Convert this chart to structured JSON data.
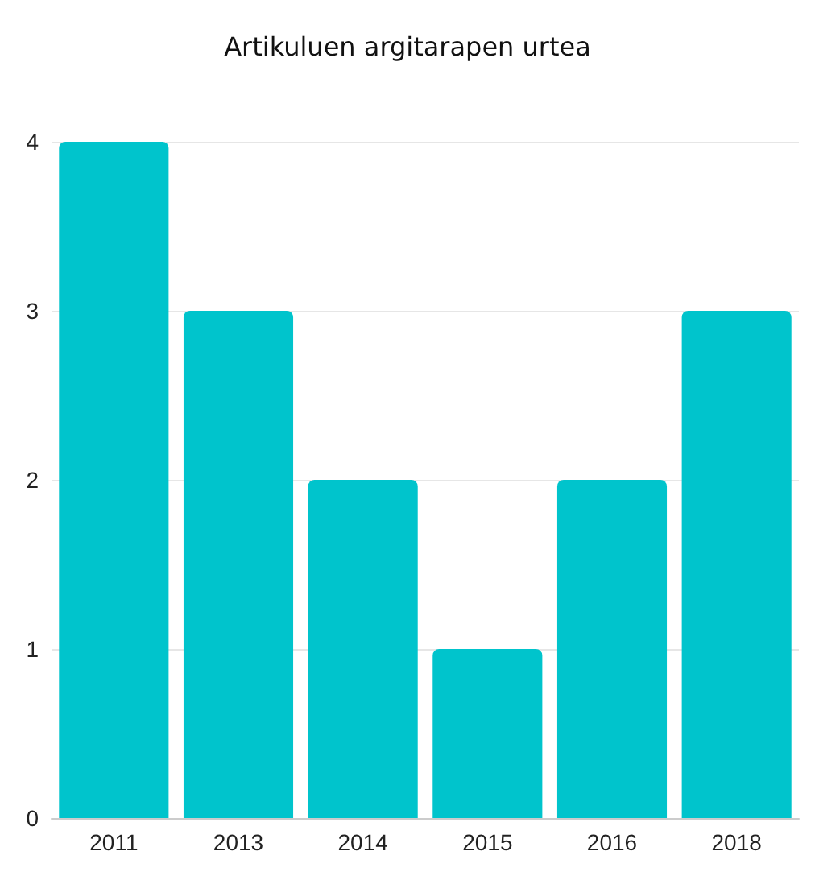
{
  "chart_data": {
    "type": "bar",
    "title": "Artikuluen argitarapen urtea",
    "categories": [
      "2011",
      "2013",
      "2014",
      "2015",
      "2016",
      "2018"
    ],
    "values": [
      4,
      3,
      2,
      1,
      2,
      3
    ],
    "color": "#00c4cc",
    "ylim": [
      0,
      4
    ],
    "yticks": [
      0,
      1,
      2,
      3,
      4
    ],
    "grid": "y"
  }
}
